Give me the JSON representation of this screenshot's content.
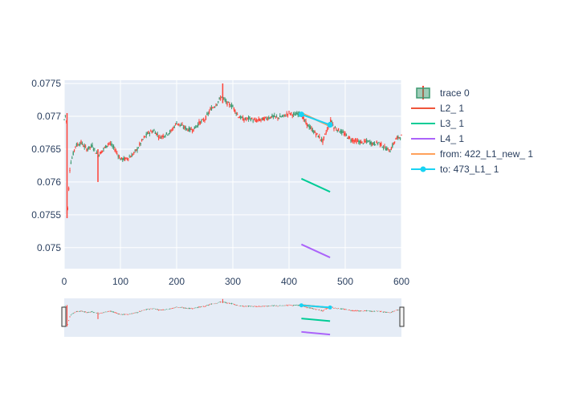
{
  "chart_data": {
    "type": "candlestick",
    "xlim": [
      0,
      600
    ],
    "ylim": [
      0.07468,
      0.07755
    ],
    "x_ticks": [
      0,
      100,
      200,
      300,
      400,
      500,
      600
    ],
    "y_ticks": [
      0.075,
      0.0755,
      0.076,
      0.0765,
      0.077,
      0.0775
    ],
    "y_tick_labels": [
      "0.075",
      "0.0755",
      "0.076",
      "0.0765",
      "0.077",
      "0.0775"
    ],
    "grid": true,
    "legend_position": "right",
    "rangeslider": true,
    "colors": {
      "increasing": "#3d9970",
      "decreasing": "#ff4136",
      "L2": "#ef553b",
      "L3": "#00cc96",
      "L4": "#ab63fa",
      "from": "#ffa15a",
      "to": "#19d3f3",
      "plot_bg": "#e5ecf6",
      "grid": "#ffffff"
    },
    "price_path": [
      [
        0,
        0.07695
      ],
      [
        3,
        0.07705
      ],
      [
        5,
        0.0768
      ],
      [
        6,
        0.0756
      ],
      [
        8,
        0.0759
      ],
      [
        10,
        0.0762
      ],
      [
        12,
        0.0763
      ],
      [
        15,
        0.0764
      ],
      [
        20,
        0.07655
      ],
      [
        30,
        0.0766
      ],
      [
        40,
        0.0765
      ],
      [
        50,
        0.07655
      ],
      [
        60,
        0.0764
      ],
      [
        70,
        0.0765
      ],
      [
        80,
        0.0766
      ],
      [
        90,
        0.0765
      ],
      [
        100,
        0.07635
      ],
      [
        110,
        0.07635
      ],
      [
        120,
        0.0764
      ],
      [
        130,
        0.0765
      ],
      [
        140,
        0.07665
      ],
      [
        150,
        0.07675
      ],
      [
        160,
        0.07678
      ],
      [
        170,
        0.07668
      ],
      [
        180,
        0.07672
      ],
      [
        190,
        0.07677
      ],
      [
        200,
        0.0769
      ],
      [
        210,
        0.07685
      ],
      [
        220,
        0.0768
      ],
      [
        230,
        0.0768
      ],
      [
        240,
        0.0769
      ],
      [
        250,
        0.07695
      ],
      [
        260,
        0.0771
      ],
      [
        270,
        0.07718
      ],
      [
        280,
        0.0773
      ],
      [
        285,
        0.07725
      ],
      [
        290,
        0.0772
      ],
      [
        300,
        0.07715
      ],
      [
        310,
        0.077
      ],
      [
        320,
        0.07695
      ],
      [
        330,
        0.07697
      ],
      [
        340,
        0.07693
      ],
      [
        350,
        0.07695
      ],
      [
        360,
        0.07697
      ],
      [
        370,
        0.077
      ],
      [
        380,
        0.07698
      ],
      [
        390,
        0.077
      ],
      [
        400,
        0.07705
      ],
      [
        410,
        0.07702
      ],
      [
        420,
        0.07705
      ],
      [
        430,
        0.0769
      ],
      [
        440,
        0.0768
      ],
      [
        450,
        0.07672
      ],
      [
        460,
        0.07662
      ],
      [
        470,
        0.07685
      ],
      [
        475,
        0.07695
      ],
      [
        480,
        0.07683
      ],
      [
        490,
        0.07678
      ],
      [
        500,
        0.07672
      ],
      [
        510,
        0.07665
      ],
      [
        520,
        0.07662
      ],
      [
        530,
        0.0766
      ],
      [
        540,
        0.07662
      ],
      [
        550,
        0.07658
      ],
      [
        560,
        0.0766
      ],
      [
        570,
        0.07652
      ],
      [
        580,
        0.07648
      ],
      [
        590,
        0.07665
      ],
      [
        595,
        0.07668
      ],
      [
        600,
        0.0767
      ]
    ],
    "spikes": [
      {
        "x": 282,
        "low": 0.0772,
        "high": 0.0775
      },
      {
        "x": 60,
        "low": 0.076,
        "high": 0.0765
      },
      {
        "x": 5,
        "low": 0.07545,
        "high": 0.07705
      }
    ],
    "series": [
      {
        "name": "L2_ 1",
        "points": [
          [
            422,
            0.07705
          ],
          [
            473,
            0.07685
          ]
        ]
      },
      {
        "name": "L3_ 1",
        "points": [
          [
            422,
            0.07605
          ],
          [
            473,
            0.07585
          ]
        ]
      },
      {
        "name": "L4_ 1",
        "points": [
          [
            422,
            0.07505
          ],
          [
            473,
            0.07485
          ]
        ]
      },
      {
        "name": "from: 422_L1_new_ 1",
        "points": [
          [
            422,
            0.07705
          ],
          [
            473,
            0.07685
          ]
        ]
      },
      {
        "name": "to: 473_L1_ 1",
        "points": [
          [
            422,
            0.07703
          ],
          [
            473,
            0.07687
          ]
        ]
      }
    ],
    "legend": [
      "trace 0",
      "L2_ 1",
      "L3_ 1",
      "L4_ 1",
      "from: 422_L1_new_ 1",
      "to: 473_L1_ 1"
    ]
  }
}
